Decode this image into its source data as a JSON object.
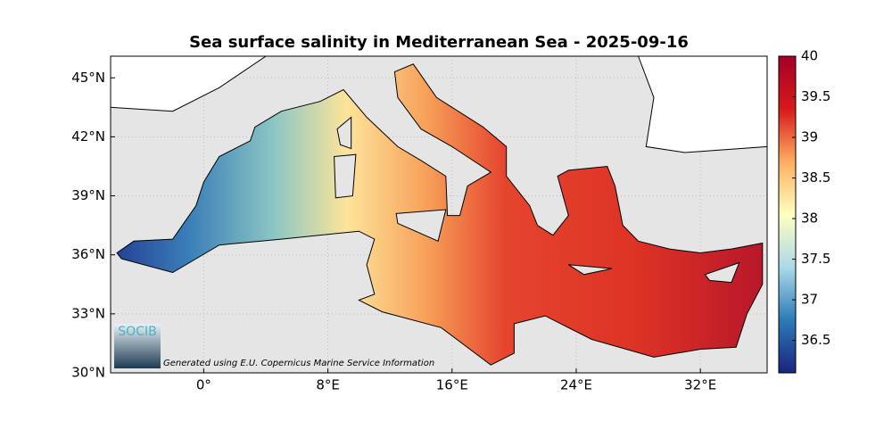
{
  "chart_data": {
    "type": "map",
    "title": "Sea surface salinity in Mediterranean Sea - 2025-09-16",
    "xlim": [
      -6,
      36.3
    ],
    "ylim": [
      30,
      46.1
    ],
    "xticks": [
      {
        "value": 0,
        "label": "0°"
      },
      {
        "value": 8,
        "label": "8°E"
      },
      {
        "value": 16,
        "label": "16°E"
      },
      {
        "value": 24,
        "label": "24°E"
      },
      {
        "value": 32,
        "label": "32°E"
      }
    ],
    "yticks": [
      {
        "value": 30,
        "label": "30°N"
      },
      {
        "value": 33,
        "label": "33°N"
      },
      {
        "value": 36,
        "label": "36°N"
      },
      {
        "value": 39,
        "label": "39°N"
      },
      {
        "value": 42,
        "label": "42°N"
      },
      {
        "value": 45,
        "label": "45°N"
      }
    ],
    "grid": true,
    "colorbar": {
      "clim": [
        36.1,
        40
      ],
      "ticks": [
        36.5,
        37,
        37.5,
        38,
        38.5,
        39,
        39.5,
        40
      ],
      "colors": [
        "#1a237e",
        "#2c7bb6",
        "#abd9e9",
        "#ffffbf",
        "#fdae61",
        "#d7191c",
        "#a50026"
      ]
    },
    "logo": "SOCIB",
    "credit": "Generated using E.U. Copernicus Marine Service Information"
  }
}
